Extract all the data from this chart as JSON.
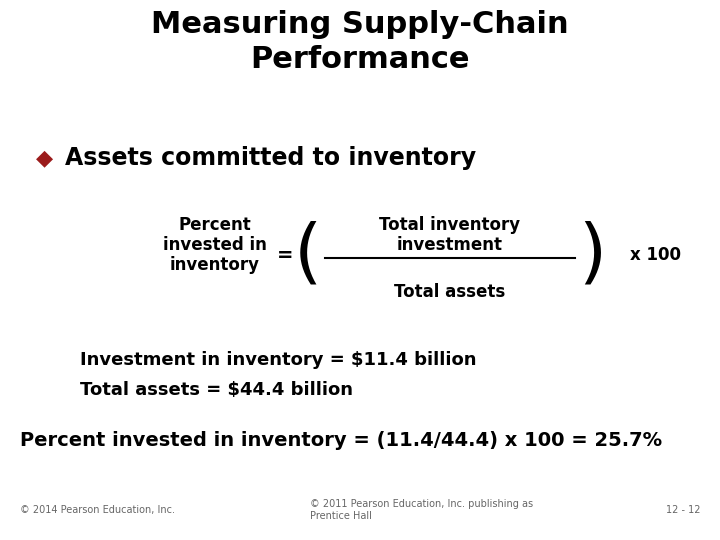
{
  "title_line1": "Measuring Supply-Chain",
  "title_line2": "Performance",
  "bullet_text": "Assets committed to inventory",
  "bullet_color": "#9B1B1B",
  "left_label_line1": "Percent",
  "left_label_line2": "invested in",
  "left_label_line3": "inventory",
  "equals_sign": "=",
  "numerator": "Total inventory",
  "numerator2": "investment",
  "denominator": "Total assets",
  "multiplier": "x 100",
  "note_line1": "Investment in inventory = $11.4 billion",
  "note_line2": "Total assets = $44.4 billion",
  "result_line": "Percent invested in inventory = (11.4/44.4) x 100 = 25.7%",
  "footer_left": "© 2014 Pearson Education, Inc.",
  "footer_center": "© 2011 Pearson Education, Inc. publishing as\nPrentice Hall",
  "footer_right": "12 - 12",
  "bg_color": "#ffffff",
  "text_color": "#000000",
  "title_fontsize": 22,
  "bullet_fontsize": 17,
  "formula_fontsize": 12,
  "note_fontsize": 13,
  "result_fontsize": 14,
  "footer_fontsize": 7
}
